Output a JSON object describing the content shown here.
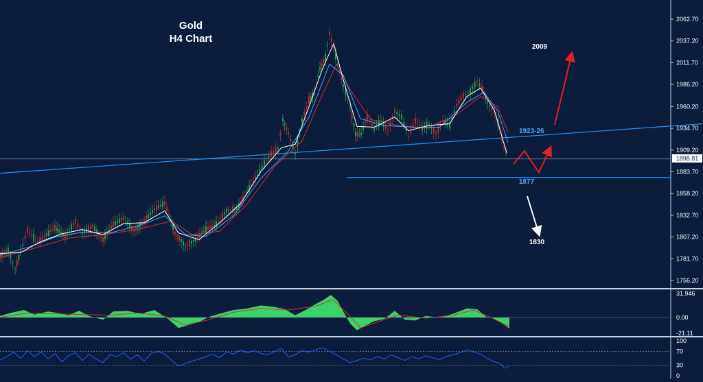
{
  "title": {
    "line1": "Gold",
    "line2": "H4 Chart"
  },
  "colors": {
    "background": "#0b1d3a",
    "axis_text": "#ffffff",
    "trendline": "#1e90ff",
    "support": "#1e90ff",
    "bull_candle": "#2e9a4a",
    "bear_candle": "#b03030",
    "ma_fast": "#ffffff",
    "ma_mid": "#4aa3ff",
    "ma_slow": "#d03030",
    "macd_hist": "#3ad36a",
    "macd_signal": "#d03030",
    "rsi": "#2a5cff",
    "arrow_up": "#e0202a",
    "arrow_down": "#ffffff",
    "current_price_line": "#8a9bb5"
  },
  "chart_data": {
    "type": "line",
    "price_axis": {
      "ticks": [
        "2062.70",
        "2037.20",
        "2011.70",
        "1986.20",
        "1960.20",
        "1934.70",
        "1909.20",
        "1883.70",
        "1858.20",
        "1832.70",
        "1807.20",
        "1781.70",
        "1756.20"
      ],
      "current_price": "1898.81"
    },
    "annotations": {
      "resistance_label": "1923-26",
      "support_label": "1877",
      "target_up": "2009",
      "target_down": "1830"
    },
    "price_series": [
      [
        0,
        1786
      ],
      [
        12,
        1792
      ],
      [
        22,
        1770
      ],
      [
        30,
        1790
      ],
      [
        40,
        1815
      ],
      [
        55,
        1801
      ],
      [
        65,
        1808
      ],
      [
        80,
        1818
      ],
      [
        95,
        1808
      ],
      [
        110,
        1826
      ],
      [
        120,
        1812
      ],
      [
        135,
        1820
      ],
      [
        150,
        1804
      ],
      [
        165,
        1822
      ],
      [
        180,
        1829
      ],
      [
        195,
        1815
      ],
      [
        210,
        1826
      ],
      [
        225,
        1840
      ],
      [
        240,
        1847
      ],
      [
        255,
        1812
      ],
      [
        270,
        1797
      ],
      [
        285,
        1804
      ],
      [
        300,
        1816
      ],
      [
        315,
        1822
      ],
      [
        330,
        1838
      ],
      [
        345,
        1840
      ],
      [
        360,
        1860
      ],
      [
        375,
        1880
      ],
      [
        385,
        1894
      ],
      [
        395,
        1905
      ],
      [
        405,
        1911
      ],
      [
        412,
        1945
      ],
      [
        420,
        1929
      ],
      [
        430,
        1905
      ],
      [
        440,
        1944
      ],
      [
        450,
        1968
      ],
      [
        458,
        1977
      ],
      [
        466,
        2005
      ],
      [
        474,
        2018
      ],
      [
        480,
        2046
      ],
      [
        486,
        2030
      ],
      [
        492,
        2009
      ],
      [
        500,
        1985
      ],
      [
        510,
        1960
      ],
      [
        518,
        1928
      ],
      [
        526,
        1928
      ],
      [
        535,
        1948
      ],
      [
        545,
        1934
      ],
      [
        555,
        1943
      ],
      [
        565,
        1933
      ],
      [
        575,
        1955
      ],
      [
        585,
        1948
      ],
      [
        595,
        1925
      ],
      [
        605,
        1943
      ],
      [
        615,
        1935
      ],
      [
        625,
        1940
      ],
      [
        635,
        1928
      ],
      [
        645,
        1943
      ],
      [
        655,
        1938
      ],
      [
        665,
        1962
      ],
      [
        675,
        1973
      ],
      [
        685,
        1978
      ],
      [
        695,
        1990
      ],
      [
        702,
        1982
      ],
      [
        710,
        1965
      ],
      [
        720,
        1955
      ],
      [
        728,
        1935
      ],
      [
        734,
        1912
      ],
      [
        740,
        1900
      ]
    ],
    "ma_fast": [
      [
        0,
        1788
      ],
      [
        30,
        1789
      ],
      [
        60,
        1802
      ],
      [
        90,
        1811
      ],
      [
        120,
        1816
      ],
      [
        150,
        1810
      ],
      [
        180,
        1823
      ],
      [
        210,
        1824
      ],
      [
        240,
        1838
      ],
      [
        260,
        1812
      ],
      [
        290,
        1804
      ],
      [
        320,
        1824
      ],
      [
        350,
        1846
      ],
      [
        380,
        1884
      ],
      [
        410,
        1912
      ],
      [
        430,
        1916
      ],
      [
        450,
        1960
      ],
      [
        470,
        2005
      ],
      [
        486,
        2034
      ],
      [
        500,
        1992
      ],
      [
        520,
        1937
      ],
      [
        545,
        1936
      ],
      [
        575,
        1948
      ],
      [
        595,
        1932
      ],
      [
        625,
        1938
      ],
      [
        655,
        1940
      ],
      [
        680,
        1972
      ],
      [
        700,
        1982
      ],
      [
        720,
        1956
      ],
      [
        738,
        1906
      ]
    ],
    "ma_mid": [
      [
        0,
        1786
      ],
      [
        40,
        1795
      ],
      [
        80,
        1807
      ],
      [
        120,
        1813
      ],
      [
        160,
        1812
      ],
      [
        200,
        1820
      ],
      [
        240,
        1832
      ],
      [
        270,
        1810
      ],
      [
        300,
        1808
      ],
      [
        340,
        1832
      ],
      [
        380,
        1876
      ],
      [
        420,
        1908
      ],
      [
        450,
        1948
      ],
      [
        480,
        2010
      ],
      [
        500,
        1997
      ],
      [
        525,
        1946
      ],
      [
        560,
        1938
      ],
      [
        600,
        1936
      ],
      [
        640,
        1936
      ],
      [
        680,
        1965
      ],
      [
        705,
        1977
      ],
      [
        725,
        1955
      ],
      [
        740,
        1918
      ]
    ],
    "ma_slow": [
      [
        0,
        1783
      ],
      [
        50,
        1794
      ],
      [
        100,
        1806
      ],
      [
        150,
        1810
      ],
      [
        200,
        1816
      ],
      [
        250,
        1826
      ],
      [
        280,
        1810
      ],
      [
        320,
        1814
      ],
      [
        360,
        1846
      ],
      [
        400,
        1890
      ],
      [
        440,
        1920
      ],
      [
        470,
        1975
      ],
      [
        490,
        2010
      ],
      [
        510,
        1980
      ],
      [
        540,
        1945
      ],
      [
        580,
        1938
      ],
      [
        620,
        1935
      ],
      [
        660,
        1948
      ],
      [
        700,
        1972
      ],
      [
        725,
        1960
      ],
      [
        740,
        1930
      ]
    ],
    "trendline": [
      [
        0,
        1882
      ],
      [
        1024,
        1940
      ]
    ],
    "support_line": {
      "level": 1877,
      "x_start": 505
    },
    "projection_red": [
      [
        748,
        1893
      ],
      [
        764,
        1908
      ],
      [
        785,
        1883
      ],
      [
        800,
        1909
      ]
    ],
    "macd_panel": {
      "ticks": [
        "31.946",
        "0.00",
        "-21.11"
      ],
      "range": [
        -21.11,
        31.946
      ],
      "histogram": [
        [
          0,
          2
        ],
        [
          15,
          6
        ],
        [
          35,
          10
        ],
        [
          50,
          4
        ],
        [
          70,
          8
        ],
        [
          85,
          6
        ],
        [
          100,
          3
        ],
        [
          115,
          9
        ],
        [
          130,
          2
        ],
        [
          150,
          -3
        ],
        [
          165,
          8
        ],
        [
          185,
          9
        ],
        [
          205,
          5
        ],
        [
          225,
          10
        ],
        [
          245,
          -2
        ],
        [
          260,
          -14
        ],
        [
          275,
          -10
        ],
        [
          290,
          -6
        ],
        [
          305,
          1
        ],
        [
          320,
          5
        ],
        [
          340,
          10
        ],
        [
          360,
          12
        ],
        [
          380,
          16
        ],
        [
          400,
          14
        ],
        [
          415,
          11
        ],
        [
          430,
          3
        ],
        [
          445,
          10
        ],
        [
          460,
          18
        ],
        [
          472,
          24
        ],
        [
          482,
          30
        ],
        [
          492,
          22
        ],
        [
          500,
          8
        ],
        [
          510,
          -8
        ],
        [
          520,
          -17
        ],
        [
          530,
          -12
        ],
        [
          545,
          -5
        ],
        [
          560,
          -2
        ],
        [
          575,
          9
        ],
        [
          590,
          -3
        ],
        [
          605,
          -4
        ],
        [
          620,
          2
        ],
        [
          640,
          0
        ],
        [
          660,
          5
        ],
        [
          680,
          12
        ],
        [
          695,
          11
        ],
        [
          708,
          1
        ],
        [
          720,
          -2
        ],
        [
          735,
          -10
        ],
        [
          742,
          -15
        ]
      ],
      "signal": [
        [
          0,
          0
        ],
        [
          40,
          6
        ],
        [
          80,
          5
        ],
        [
          120,
          4
        ],
        [
          160,
          3
        ],
        [
          200,
          6
        ],
        [
          240,
          2
        ],
        [
          270,
          -10
        ],
        [
          300,
          -4
        ],
        [
          340,
          7
        ],
        [
          380,
          12
        ],
        [
          420,
          10
        ],
        [
          460,
          15
        ],
        [
          485,
          24
        ],
        [
          505,
          6
        ],
        [
          525,
          -14
        ],
        [
          550,
          -6
        ],
        [
          580,
          3
        ],
        [
          620,
          -1
        ],
        [
          660,
          3
        ],
        [
          690,
          10
        ],
        [
          715,
          0
        ],
        [
          742,
          -12
        ]
      ]
    },
    "rsi_panel": {
      "ticks": [
        "100",
        "70",
        "30",
        "0"
      ],
      "range": [
        0,
        100
      ],
      "series": [
        [
          0,
          45
        ],
        [
          10,
          55
        ],
        [
          20,
          68
        ],
        [
          30,
          50
        ],
        [
          40,
          72
        ],
        [
          50,
          55
        ],
        [
          60,
          68
        ],
        [
          70,
          48
        ],
        [
          80,
          64
        ],
        [
          90,
          40
        ],
        [
          100,
          58
        ],
        [
          110,
          66
        ],
        [
          120,
          44
        ],
        [
          130,
          62
        ],
        [
          140,
          48
        ],
        [
          150,
          38
        ],
        [
          160,
          60
        ],
        [
          170,
          55
        ],
        [
          180,
          66
        ],
        [
          190,
          48
        ],
        [
          200,
          60
        ],
        [
          210,
          42
        ],
        [
          220,
          64
        ],
        [
          230,
          70
        ],
        [
          240,
          62
        ],
        [
          250,
          44
        ],
        [
          260,
          28
        ],
        [
          270,
          35
        ],
        [
          280,
          42
        ],
        [
          290,
          48
        ],
        [
          300,
          55
        ],
        [
          310,
          62
        ],
        [
          320,
          52
        ],
        [
          330,
          68
        ],
        [
          340,
          62
        ],
        [
          350,
          74
        ],
        [
          360,
          66
        ],
        [
          370,
          72
        ],
        [
          380,
          64
        ],
        [
          390,
          60
        ],
        [
          400,
          70
        ],
        [
          410,
          78
        ],
        [
          420,
          54
        ],
        [
          430,
          60
        ],
        [
          440,
          72
        ],
        [
          450,
          68
        ],
        [
          460,
          75
        ],
        [
          470,
          80
        ],
        [
          480,
          70
        ],
        [
          490,
          60
        ],
        [
          500,
          48
        ],
        [
          510,
          38
        ],
        [
          520,
          44
        ],
        [
          530,
          50
        ],
        [
          540,
          46
        ],
        [
          550,
          55
        ],
        [
          560,
          48
        ],
        [
          570,
          60
        ],
        [
          580,
          52
        ],
        [
          590,
          44
        ],
        [
          600,
          55
        ],
        [
          610,
          48
        ],
        [
          620,
          57
        ],
        [
          630,
          52
        ],
        [
          640,
          46
        ],
        [
          650,
          55
        ],
        [
          660,
          60
        ],
        [
          670,
          66
        ],
        [
          680,
          74
        ],
        [
          690,
          68
        ],
        [
          700,
          62
        ],
        [
          710,
          50
        ],
        [
          720,
          40
        ],
        [
          728,
          36
        ],
        [
          735,
          22
        ],
        [
          742,
          28
        ]
      ]
    }
  }
}
